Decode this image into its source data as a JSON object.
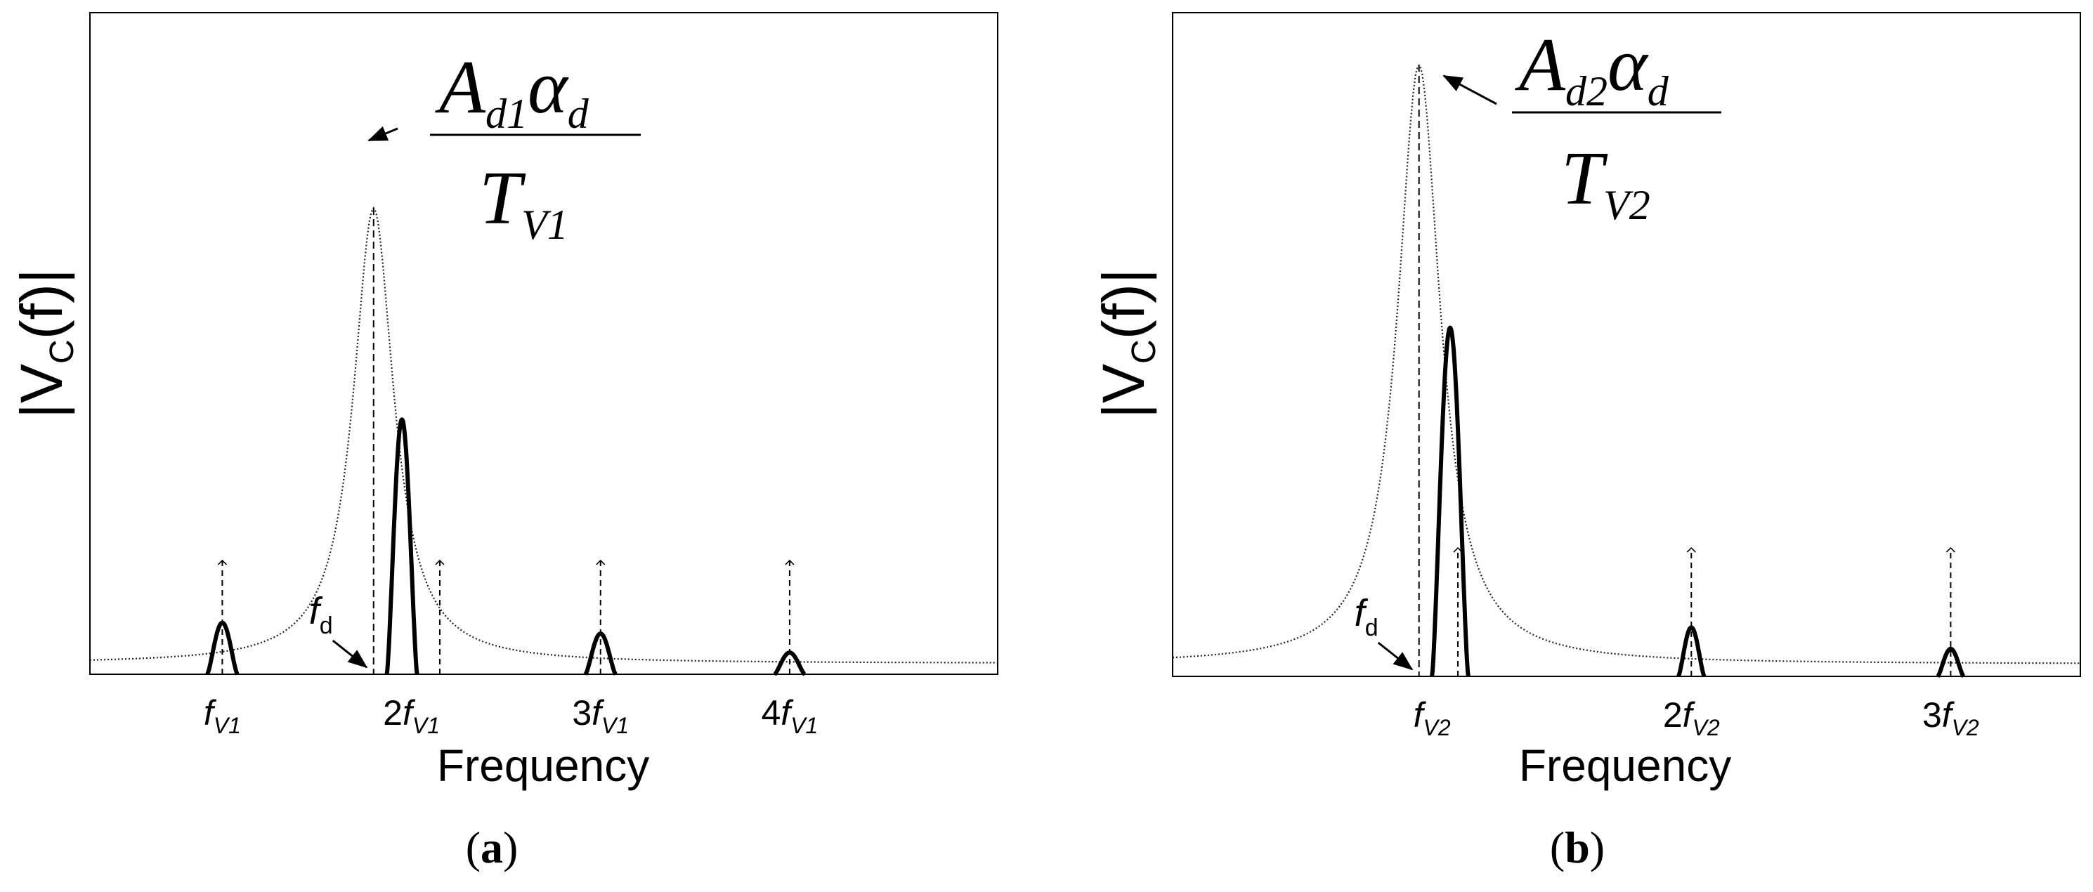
{
  "chart_data": [
    {
      "type": "line",
      "panel": "a",
      "caption": "a",
      "xlabel": "Frequency",
      "ylabel": {
        "main": "|V",
        "sub": "C",
        "rest": "(f)|"
      },
      "xlim": [
        0.3,
        5.1
      ],
      "ylim": [
        0,
        1.0
      ],
      "grid": false,
      "ticks": [
        {
          "value": 1,
          "coef": "",
          "sym": "f",
          "sub": "V1"
        },
        {
          "value": 2,
          "coef": "2",
          "sym": "f",
          "sub": "V1"
        },
        {
          "value": 3,
          "coef": "3",
          "sym": "f",
          "sub": "V1"
        },
        {
          "value": 4,
          "coef": "4",
          "sym": "f",
          "sub": "V1"
        }
      ],
      "envelope": {
        "center": 1.8,
        "peak": 0.86,
        "gamma": 0.13,
        "floor": 0.02
      },
      "impulses": [
        {
          "x": 1,
          "height": 0.21
        },
        {
          "x": 2.15,
          "height": 0.21
        },
        {
          "x": 3,
          "height": 0.21
        },
        {
          "x": 4,
          "height": 0.21
        }
      ],
      "lobes": [
        {
          "center": 1.0,
          "halfwidth": 0.08,
          "height": 0.095
        },
        {
          "center": 1.95,
          "halfwidth": 0.08,
          "height": 0.47
        },
        {
          "center": 3.0,
          "halfwidth": 0.08,
          "height": 0.075
        },
        {
          "center": 4.0,
          "halfwidth": 0.08,
          "height": 0.04
        }
      ],
      "fd": {
        "x": 1.8,
        "label": "f",
        "sub": "d"
      },
      "formula": {
        "num": "A",
        "num_sub": "d1",
        "num_tail": "α",
        "num_tail_sub": "d",
        "den": "T",
        "den_sub": "V1"
      }
    },
    {
      "type": "line",
      "panel": "b",
      "caption": "b",
      "xlabel": "Frequency",
      "ylabel": {
        "main": "|V",
        "sub": "C",
        "rest": "(f)|"
      },
      "xlim": [
        0.0,
        3.5
      ],
      "ylim": [
        0,
        1.0
      ],
      "grid": false,
      "ticks": [
        {
          "value": 1,
          "coef": "",
          "sym": "f",
          "sub": "V2"
        },
        {
          "value": 2,
          "coef": "2",
          "sym": "f",
          "sub": "V2"
        },
        {
          "value": 3,
          "coef": "3",
          "sym": "f",
          "sub": "V2"
        }
      ],
      "envelope": {
        "center": 0.95,
        "peak": 1.0,
        "gamma": 0.1,
        "floor": 0.02
      },
      "impulses": [
        {
          "x": 1.1,
          "height": 0.21
        },
        {
          "x": 2.0,
          "height": 0.21
        },
        {
          "x": 3.0,
          "height": 0.21
        }
      ],
      "lobes": [
        {
          "center": 1.07,
          "halfwidth": 0.07,
          "height": 0.57
        },
        {
          "center": 2.0,
          "halfwidth": 0.05,
          "height": 0.08
        },
        {
          "center": 3.0,
          "halfwidth": 0.05,
          "height": 0.045
        }
      ],
      "fd": {
        "x": 0.95,
        "label": "f",
        "sub": "d"
      },
      "formula": {
        "num": "A",
        "num_sub": "d2",
        "num_tail": "α",
        "num_tail_sub": "d",
        "den": "T",
        "den_sub": "V2"
      }
    }
  ]
}
